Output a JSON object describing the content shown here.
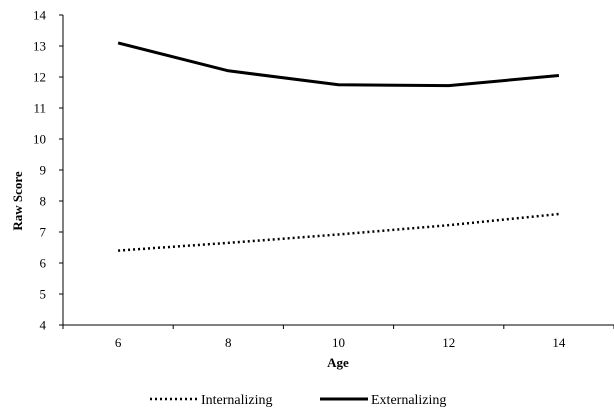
{
  "chart_data": {
    "type": "line",
    "title": "",
    "xlabel": "Age",
    "ylabel": "Raw Score",
    "x": [
      6,
      8,
      10,
      12,
      14
    ],
    "xlim": [
      5,
      15
    ],
    "ylim": [
      4,
      14
    ],
    "xticks": [
      "6",
      "8",
      "10",
      "12",
      "14"
    ],
    "yticks": [
      "4",
      "5",
      "6",
      "7",
      "8",
      "9",
      "10",
      "11",
      "12",
      "13",
      "14"
    ],
    "grid": false,
    "legend_position": "bottom",
    "series": [
      {
        "name": "Internalizing",
        "values": [
          6.4,
          6.65,
          6.92,
          7.22,
          7.58
        ],
        "color": "#000000",
        "style": "dotted"
      },
      {
        "name": "Externalizing",
        "values": [
          13.1,
          12.2,
          11.75,
          11.72,
          12.05
        ],
        "color": "#000000",
        "style": "solid"
      }
    ]
  }
}
